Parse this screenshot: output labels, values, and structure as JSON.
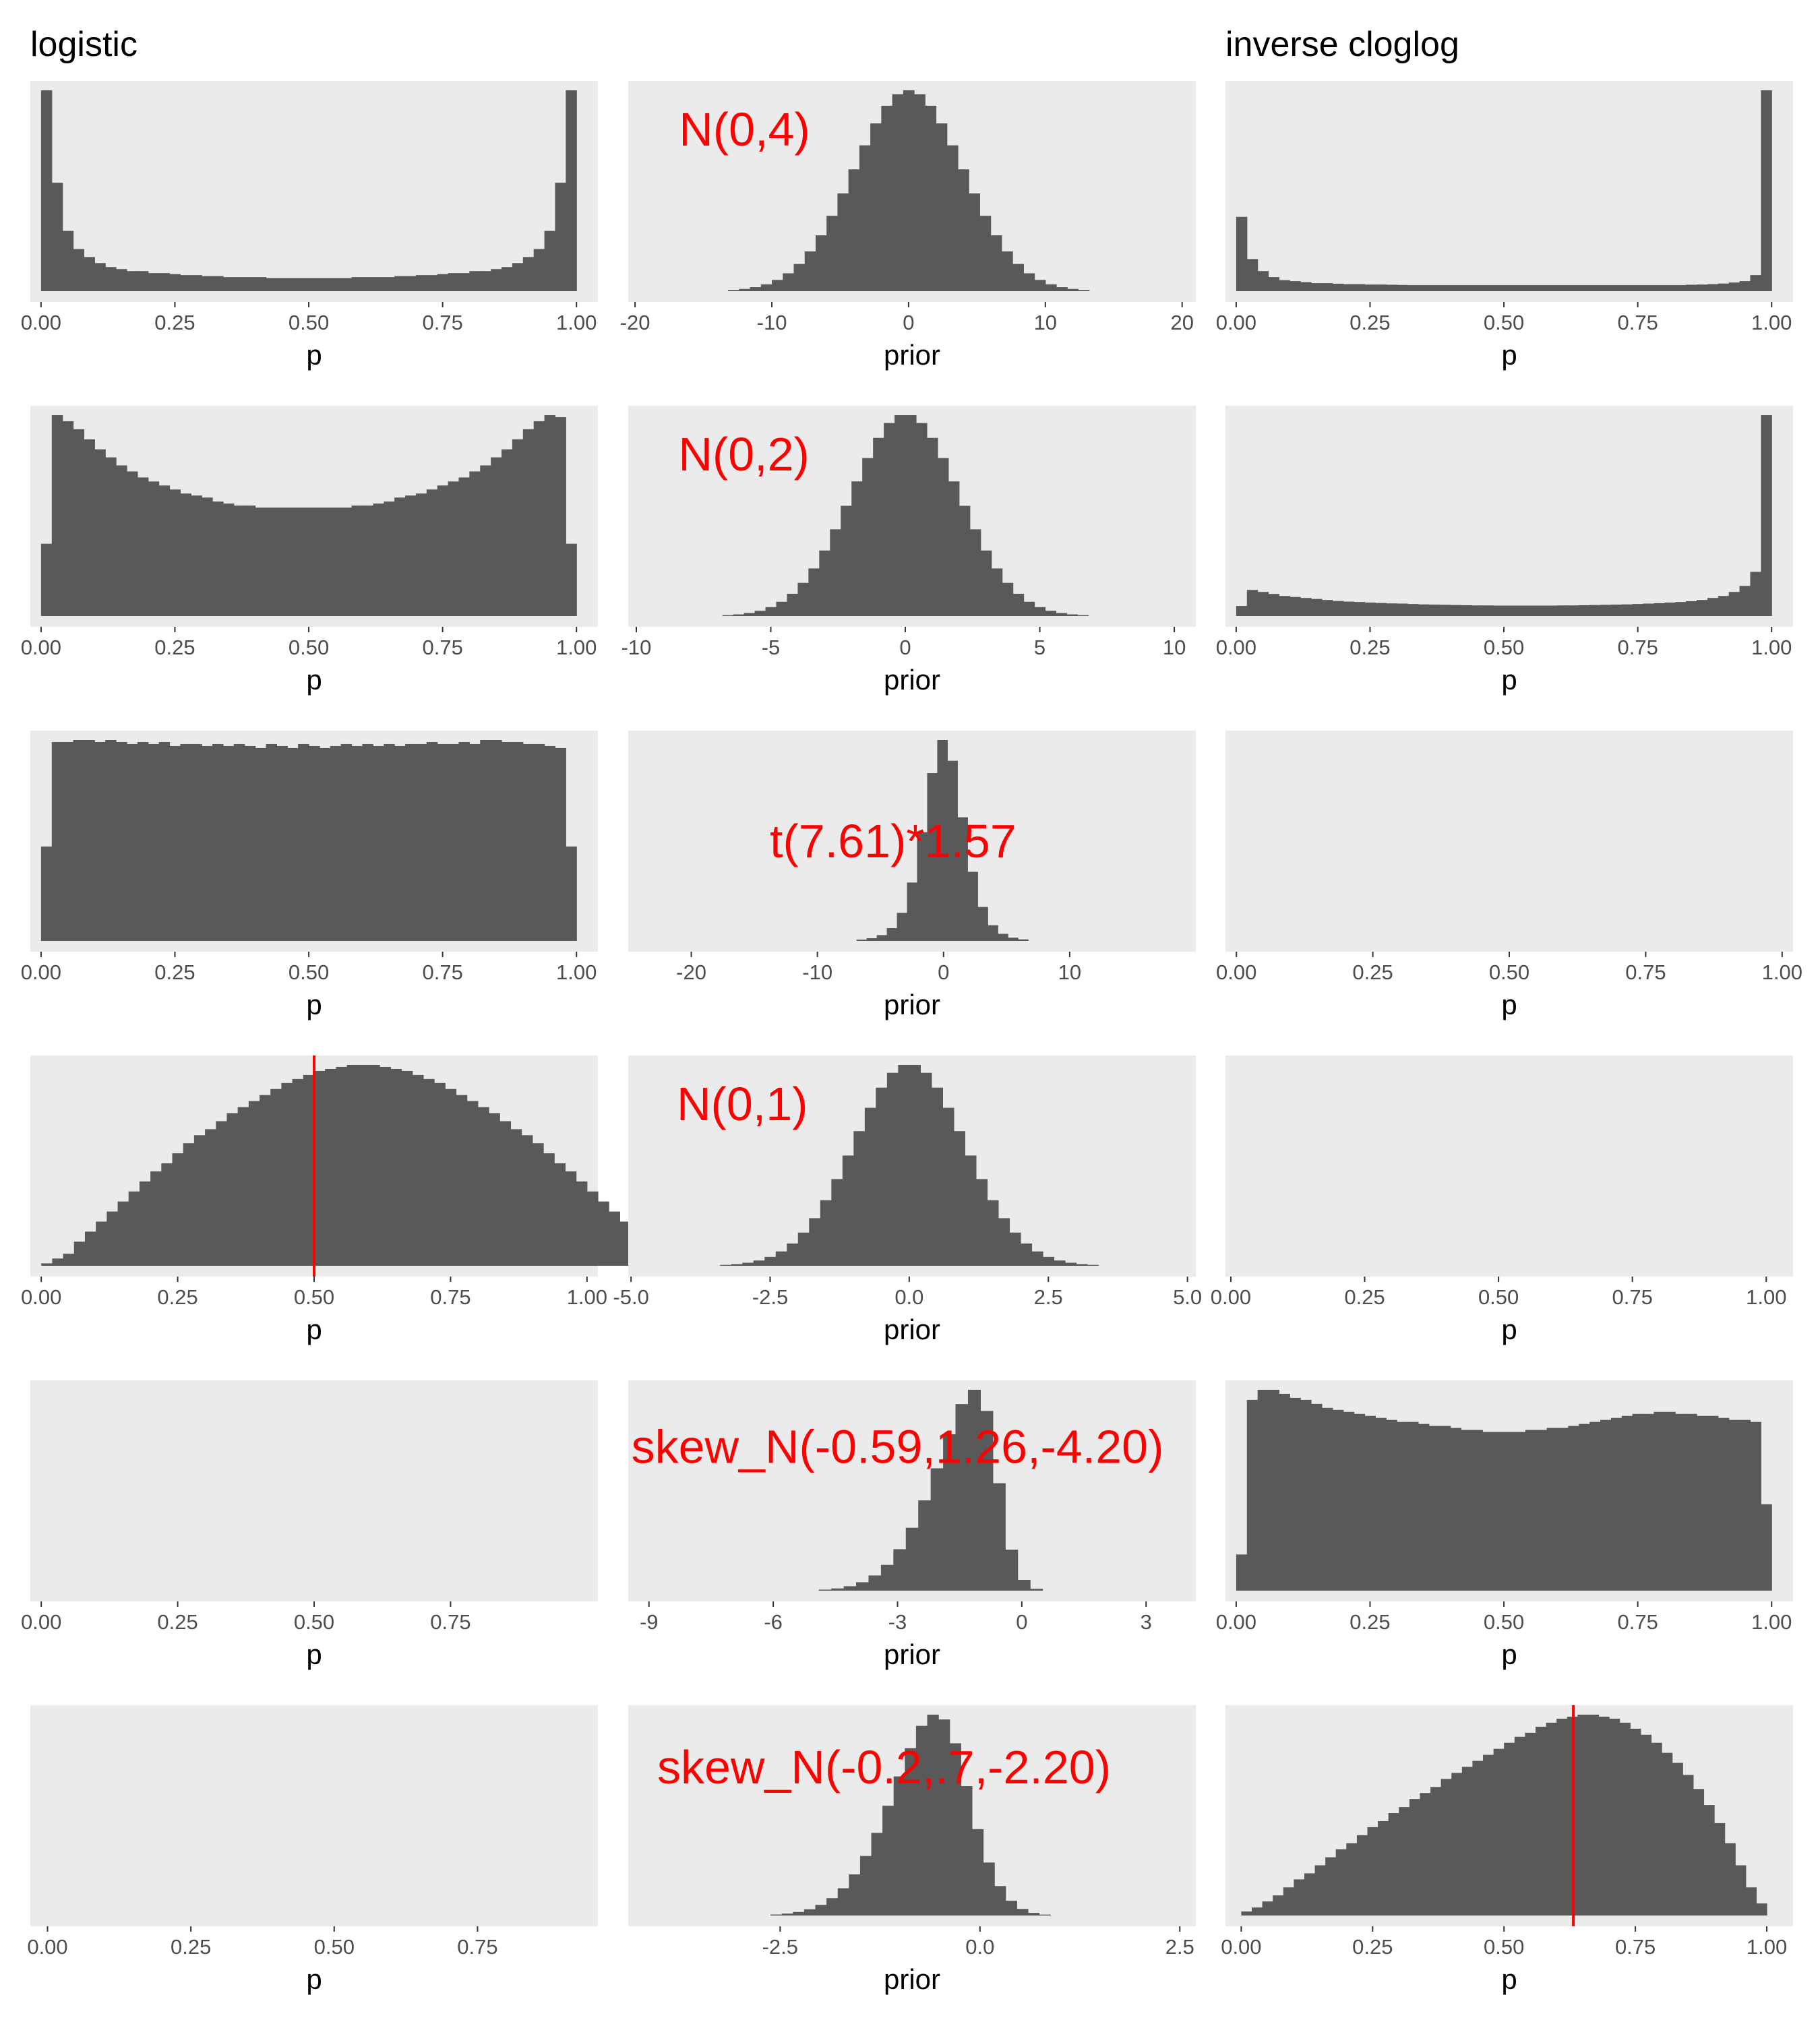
{
  "chart_data": {
    "type": "histogram-grid",
    "rows": 6,
    "columns": 3,
    "column_titles": [
      "logistic",
      "",
      "inverse cloglog"
    ],
    "colors": {
      "panel_background": "#ebebeb",
      "bar_fill": "#595959",
      "annotation": "#ff0000",
      "reference_line": "#ff0000"
    },
    "panels": [
      {
        "row": 0,
        "col": 0,
        "xlabel": "p",
        "xlim": [
          -0.02,
          1.04
        ],
        "ticks": [
          0,
          0.25,
          0.5,
          0.75,
          1
        ],
        "tick_labels": [
          "0.00",
          "0.25",
          "0.50",
          "0.75",
          "1.00"
        ],
        "bins": {
          "start": 0,
          "width": 0.02,
          "heights": [
            1.0,
            0.54,
            0.3,
            0.21,
            0.17,
            0.14,
            0.12,
            0.11,
            0.1,
            0.1,
            0.09,
            0.09,
            0.085,
            0.08,
            0.08,
            0.075,
            0.075,
            0.07,
            0.07,
            0.07,
            0.07,
            0.065,
            0.065,
            0.065,
            0.065,
            0.065,
            0.065,
            0.065,
            0.065,
            0.07,
            0.07,
            0.07,
            0.07,
            0.075,
            0.075,
            0.08,
            0.08,
            0.085,
            0.09,
            0.09,
            0.1,
            0.1,
            0.11,
            0.12,
            0.14,
            0.17,
            0.21,
            0.3,
            0.54,
            1.0
          ]
        }
      },
      {
        "row": 0,
        "col": 1,
        "xlabel": "prior",
        "xlim": [
          -20.5,
          21
        ],
        "ticks": [
          -20,
          -10,
          0,
          10,
          20
        ],
        "tick_labels": [
          "-20",
          "-10",
          "0",
          "10",
          "20"
        ],
        "annotation": {
          "text": "N(0,4)",
          "x": -12,
          "y": 0.78
        },
        "dist": {
          "kind": "normal",
          "mean": 0,
          "sd": 4,
          "range": [
            -14.8,
            14.8
          ],
          "bin_width": 0.8
        }
      },
      {
        "row": 0,
        "col": 2,
        "xlabel": "p",
        "xlim": [
          -0.02,
          1.04
        ],
        "ticks": [
          0,
          0.25,
          0.5,
          0.75,
          1
        ],
        "tick_labels": [
          "0.00",
          "0.25",
          "0.50",
          "0.75",
          "1.00"
        ],
        "bins": {
          "start": 0,
          "width": 0.02,
          "heights": [
            0.37,
            0.16,
            0.1,
            0.07,
            0.055,
            0.05,
            0.045,
            0.04,
            0.04,
            0.037,
            0.035,
            0.035,
            0.033,
            0.033,
            0.032,
            0.031,
            0.03,
            0.03,
            0.03,
            0.03,
            0.03,
            0.03,
            0.03,
            0.03,
            0.03,
            0.03,
            0.03,
            0.03,
            0.03,
            0.03,
            0.03,
            0.03,
            0.03,
            0.03,
            0.03,
            0.03,
            0.03,
            0.03,
            0.03,
            0.03,
            0.03,
            0.03,
            0.032,
            0.033,
            0.035,
            0.038,
            0.043,
            0.05,
            0.08,
            1.0
          ]
        }
      },
      {
        "row": 1,
        "col": 0,
        "xlabel": "p",
        "xlim": [
          -0.02,
          1.04
        ],
        "ticks": [
          0,
          0.25,
          0.5,
          0.75,
          1
        ],
        "tick_labels": [
          "0.00",
          "0.25",
          "0.50",
          "0.75",
          "1.00"
        ],
        "bins": {
          "start": 0,
          "width": 0.02,
          "heights": [
            0.36,
            1.0,
            0.97,
            0.93,
            0.88,
            0.83,
            0.79,
            0.75,
            0.72,
            0.69,
            0.67,
            0.65,
            0.63,
            0.61,
            0.6,
            0.59,
            0.57,
            0.56,
            0.55,
            0.55,
            0.54,
            0.54,
            0.54,
            0.54,
            0.54,
            0.54,
            0.54,
            0.54,
            0.54,
            0.55,
            0.55,
            0.56,
            0.57,
            0.59,
            0.6,
            0.61,
            0.63,
            0.65,
            0.67,
            0.69,
            0.72,
            0.75,
            0.79,
            0.83,
            0.88,
            0.93,
            0.97,
            1.0,
            0.99,
            0.36
          ]
        }
      },
      {
        "row": 1,
        "col": 1,
        "xlabel": "prior",
        "xlim": [
          -10.3,
          10.8
        ],
        "ticks": [
          -10,
          -5,
          0,
          5,
          10
        ],
        "tick_labels": [
          "-10",
          "-5",
          "0",
          "5",
          "10"
        ],
        "annotation": {
          "text": "N(0,2)",
          "x": -6,
          "y": 0.78
        },
        "dist": {
          "kind": "normal",
          "mean": 0,
          "sd": 2,
          "range": [
            -7.2,
            7.2
          ],
          "bin_width": 0.4
        }
      },
      {
        "row": 1,
        "col": 2,
        "xlabel": "p",
        "xlim": [
          -0.02,
          1.04
        ],
        "ticks": [
          0,
          0.25,
          0.5,
          0.75,
          1
        ],
        "tick_labels": [
          "0.00",
          "0.25",
          "0.50",
          "0.75",
          "1.00"
        ],
        "bins": {
          "start": 0,
          "width": 0.02,
          "heights": [
            0.05,
            0.13,
            0.12,
            0.11,
            0.1,
            0.095,
            0.09,
            0.085,
            0.08,
            0.075,
            0.072,
            0.07,
            0.067,
            0.065,
            0.063,
            0.062,
            0.06,
            0.058,
            0.057,
            0.056,
            0.055,
            0.054,
            0.053,
            0.053,
            0.052,
            0.052,
            0.052,
            0.052,
            0.052,
            0.052,
            0.053,
            0.053,
            0.054,
            0.055,
            0.056,
            0.057,
            0.058,
            0.06,
            0.062,
            0.064,
            0.067,
            0.07,
            0.074,
            0.08,
            0.09,
            0.1,
            0.12,
            0.15,
            0.22,
            1.0
          ]
        }
      },
      {
        "row": 2,
        "col": 0,
        "xlabel": "p",
        "xlim": [
          -0.02,
          1.04
        ],
        "ticks": [
          0,
          0.25,
          0.5,
          0.75,
          1
        ],
        "tick_labels": [
          "0.00",
          "0.25",
          "0.50",
          "0.75",
          "1.00"
        ],
        "bins": {
          "start": 0,
          "width": 0.02,
          "heights": [
            0.47,
            0.99,
            0.99,
            1.0,
            1.0,
            0.99,
            1.0,
            0.99,
            0.98,
            0.99,
            0.98,
            0.99,
            0.97,
            0.98,
            0.98,
            0.97,
            0.98,
            0.97,
            0.98,
            0.97,
            0.96,
            0.98,
            0.97,
            0.96,
            0.98,
            0.97,
            0.96,
            0.97,
            0.98,
            0.97,
            0.98,
            0.97,
            0.98,
            0.97,
            0.98,
            0.98,
            0.99,
            0.98,
            0.98,
            0.99,
            0.98,
            1.0,
            1.0,
            0.99,
            0.99,
            0.98,
            0.98,
            0.97,
            0.96,
            0.47
          ]
        }
      },
      {
        "row": 2,
        "col": 1,
        "xlabel": "prior",
        "xlim": [
          -25,
          20
        ],
        "ticks": [
          -20,
          -10,
          0,
          10
        ],
        "tick_labels": [
          "-20",
          "-10",
          "0",
          "10"
        ],
        "annotation": {
          "text": "t(7.61)*1.57",
          "x": -4,
          "y": 0.5
        },
        "dist": {
          "kind": "student_t",
          "df": 7.61,
          "scale": 1.57,
          "range": [
            -8.5,
            8.7
          ],
          "bin_width": 0.8
        }
      },
      {
        "row": 2,
        "col": 2,
        "xlabel": "p",
        "xlim": [
          -0.02,
          1.02
        ],
        "ticks": [
          0,
          0.25,
          0.5,
          0.75,
          1
        ],
        "tick_labels": [
          "0.00",
          "0.25",
          "0.50",
          "0.75",
          "1.00"
        ]
      },
      {
        "row": 3,
        "col": 0,
        "xlabel": "p",
        "xlim": [
          -0.02,
          1.02
        ],
        "ticks": [
          0,
          0.25,
          0.5,
          0.75,
          1
        ],
        "tick_labels": [
          "0.00",
          "0.25",
          "0.50",
          "0.75",
          "1.00"
        ],
        "vline": 0.5,
        "bins": {
          "start": 0,
          "width": 0.02,
          "heights": [
            0.012,
            0.036,
            0.06,
            0.12,
            0.17,
            0.22,
            0.27,
            0.32,
            0.37,
            0.42,
            0.47,
            0.51,
            0.56,
            0.61,
            0.65,
            0.68,
            0.72,
            0.76,
            0.79,
            0.82,
            0.85,
            0.88,
            0.91,
            0.93,
            0.95,
            0.97,
            0.98,
            0.99,
            1.0,
            1.0,
            1.0,
            0.99,
            0.98,
            0.97,
            0.95,
            0.93,
            0.91,
            0.88,
            0.85,
            0.82,
            0.79,
            0.76,
            0.72,
            0.68,
            0.65,
            0.61,
            0.56,
            0.51,
            0.47,
            0.42,
            0.37,
            0.32,
            0.27,
            0.22,
            0.17,
            0.12,
            0.06,
            0.036,
            0.012
          ]
        }
      },
      {
        "row": 3,
        "col": 1,
        "xlabel": "prior",
        "xlim": [
          -5.05,
          5.15
        ],
        "ticks": [
          -5,
          -2.5,
          0,
          2.5,
          5
        ],
        "tick_labels": [
          "-5.0",
          "-2.5",
          "0.0",
          "2.5",
          "5.0"
        ],
        "annotation": {
          "text": "N(0,1)",
          "x": -3,
          "y": 0.78
        },
        "dist": {
          "kind": "normal",
          "mean": 0,
          "sd": 1,
          "range": [
            -3.8,
            3.8
          ],
          "bin_width": 0.2
        }
      },
      {
        "row": 3,
        "col": 2,
        "xlabel": "p",
        "xlim": [
          -0.01,
          1.05
        ],
        "ticks": [
          0,
          0.25,
          0.5,
          0.75,
          1
        ],
        "tick_labels": [
          "0.00",
          "0.25",
          "0.50",
          "0.75",
          "1.00"
        ]
      },
      {
        "row": 4,
        "col": 0,
        "xlabel": "p",
        "xlim": [
          -0.02,
          1.02
        ],
        "ticks": [
          0,
          0.25,
          0.5,
          0.75
        ],
        "tick_labels": [
          "0.00",
          "0.25",
          "0.50",
          "0.75"
        ]
      },
      {
        "row": 4,
        "col": 1,
        "xlabel": "prior",
        "xlim": [
          -9.5,
          4.2
        ],
        "ticks": [
          -9,
          -6,
          -3,
          0,
          3
        ],
        "tick_labels": [
          "-9",
          "-6",
          "-3",
          "0",
          "3"
        ],
        "annotation": {
          "text": "skew_N(-0.59,1.26,-4.20)",
          "x": -3,
          "y": 0.7
        },
        "dist": {
          "kind": "skew_normal",
          "location": -0.59,
          "scale": 1.26,
          "shape": -4.2,
          "range": [
            -7.0,
            2.5
          ],
          "bin_width": 0.3
        }
      },
      {
        "row": 4,
        "col": 2,
        "xlabel": "p",
        "xlim": [
          -0.02,
          1.04
        ],
        "ticks": [
          0,
          0.25,
          0.5,
          0.75,
          1
        ],
        "tick_labels": [
          "0.00",
          "0.25",
          "0.50",
          "0.75",
          "1.00"
        ],
        "bins": {
          "start": 0,
          "width": 0.02,
          "heights": [
            0.18,
            0.95,
            1.0,
            1.0,
            0.98,
            0.96,
            0.95,
            0.93,
            0.91,
            0.9,
            0.89,
            0.88,
            0.87,
            0.86,
            0.85,
            0.84,
            0.84,
            0.83,
            0.82,
            0.82,
            0.81,
            0.8,
            0.8,
            0.79,
            0.79,
            0.79,
            0.79,
            0.8,
            0.8,
            0.81,
            0.81,
            0.82,
            0.83,
            0.84,
            0.85,
            0.86,
            0.87,
            0.88,
            0.88,
            0.89,
            0.89,
            0.88,
            0.88,
            0.87,
            0.87,
            0.86,
            0.85,
            0.85,
            0.84,
            0.43
          ]
        }
      },
      {
        "row": 5,
        "col": 0,
        "xlabel": "p",
        "xlim": [
          -0.03,
          0.96
        ],
        "ticks": [
          0,
          0.25,
          0.5,
          0.75
        ],
        "tick_labels": [
          "0.00",
          "0.25",
          "0.50",
          "0.75"
        ]
      },
      {
        "row": 5,
        "col": 1,
        "xlabel": "prior",
        "xlim": [
          -4.4,
          2.7
        ],
        "ticks": [
          -2.5,
          0,
          2.5
        ],
        "tick_labels": [
          "-2.5",
          "0.0",
          "2.5"
        ],
        "annotation": {
          "text": "skew_N(-0.2,.7,-2.20)",
          "x": -1.2,
          "y": 0.72
        },
        "dist": {
          "kind": "skew_normal",
          "location": -0.2,
          "scale": 0.7,
          "shape": -2.2,
          "range": [
            -3.6,
            2.0
          ],
          "bin_width": 0.14
        }
      },
      {
        "row": 5,
        "col": 2,
        "xlabel": "p",
        "xlim": [
          -0.03,
          1.05
        ],
        "ticks": [
          0,
          0.25,
          0.5,
          0.75,
          1
        ],
        "tick_labels": [
          "0.00",
          "0.25",
          "0.50",
          "0.75",
          "1.00"
        ],
        "vline": 0.632,
        "bins": {
          "start": 0,
          "width": 0.02,
          "heights": [
            0.02,
            0.04,
            0.07,
            0.1,
            0.14,
            0.18,
            0.21,
            0.25,
            0.29,
            0.33,
            0.36,
            0.4,
            0.44,
            0.47,
            0.51,
            0.54,
            0.58,
            0.61,
            0.64,
            0.68,
            0.71,
            0.74,
            0.77,
            0.8,
            0.83,
            0.86,
            0.89,
            0.91,
            0.94,
            0.96,
            0.98,
            0.99,
            1.0,
            1.0,
            0.99,
            0.98,
            0.96,
            0.93,
            0.9,
            0.86,
            0.81,
            0.76,
            0.7,
            0.63,
            0.55,
            0.46,
            0.36,
            0.25,
            0.14,
            0.06
          ]
        }
      }
    ]
  }
}
